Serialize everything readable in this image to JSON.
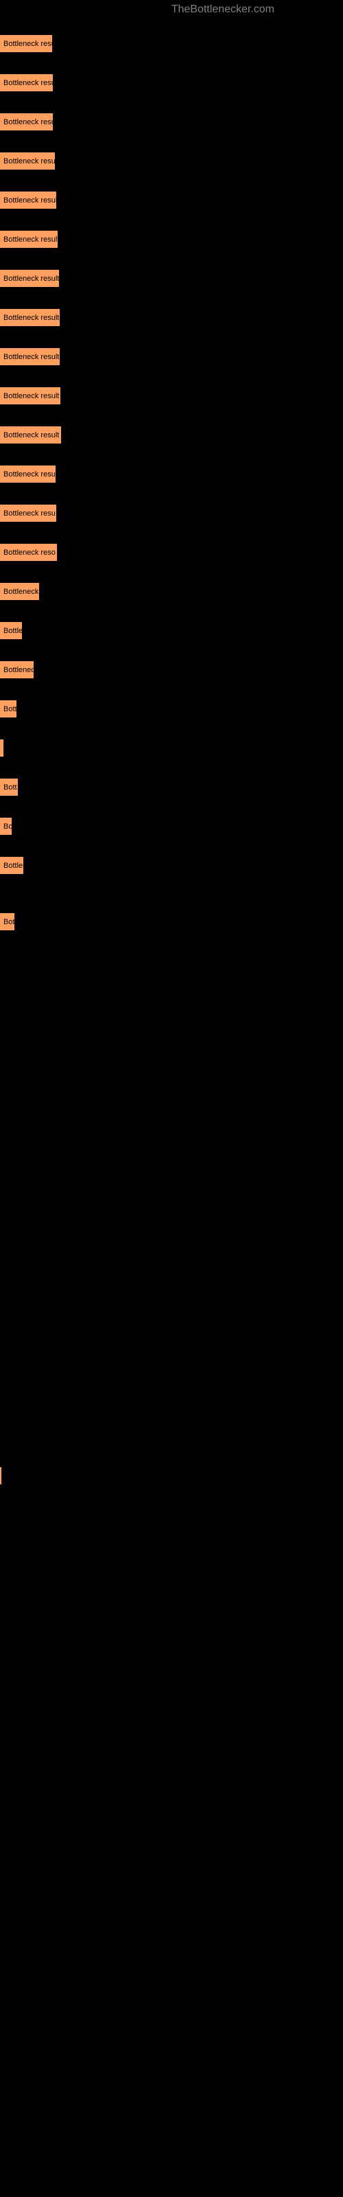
{
  "watermark": "TheBottlenecker.com",
  "bars": [
    {
      "label": "Bottleneck result",
      "width": 77
    },
    {
      "label": "Bottleneck result",
      "width": 78
    },
    {
      "label": "Bottleneck result",
      "width": 78
    },
    {
      "label": "Bottleneck result",
      "width": 81
    },
    {
      "label": "Bottleneck result",
      "width": 83
    },
    {
      "label": "Bottleneck result",
      "width": 85
    },
    {
      "label": "Bottleneck result",
      "width": 87
    },
    {
      "label": "Bottleneck result",
      "width": 88
    },
    {
      "label": "Bottleneck result",
      "width": 88
    },
    {
      "label": "Bottleneck result",
      "width": 89
    },
    {
      "label": "Bottleneck result",
      "width": 90
    },
    {
      "label": "Bottleneck resu",
      "width": 82
    },
    {
      "label": "Bottleneck resu",
      "width": 83
    },
    {
      "label": "Bottleneck reso",
      "width": 84
    },
    {
      "label": "Bottleneck)",
      "width": 58
    },
    {
      "label": "Bottle",
      "width": 33
    },
    {
      "label": "Bottlenec",
      "width": 50
    },
    {
      "label": "Bott",
      "width": 25
    },
    {
      "label": "",
      "width": 6
    },
    {
      "label": "Bott",
      "width": 27
    },
    {
      "label": "Bo",
      "width": 18
    },
    {
      "label": "Bottler",
      "width": 35
    },
    {
      "label": "Bot",
      "width": 22
    }
  ],
  "lastBar": {
    "label": "",
    "width": 3
  },
  "barColor": "#ffa060",
  "backgroundColor": "#000000",
  "labelFontSize": 11
}
